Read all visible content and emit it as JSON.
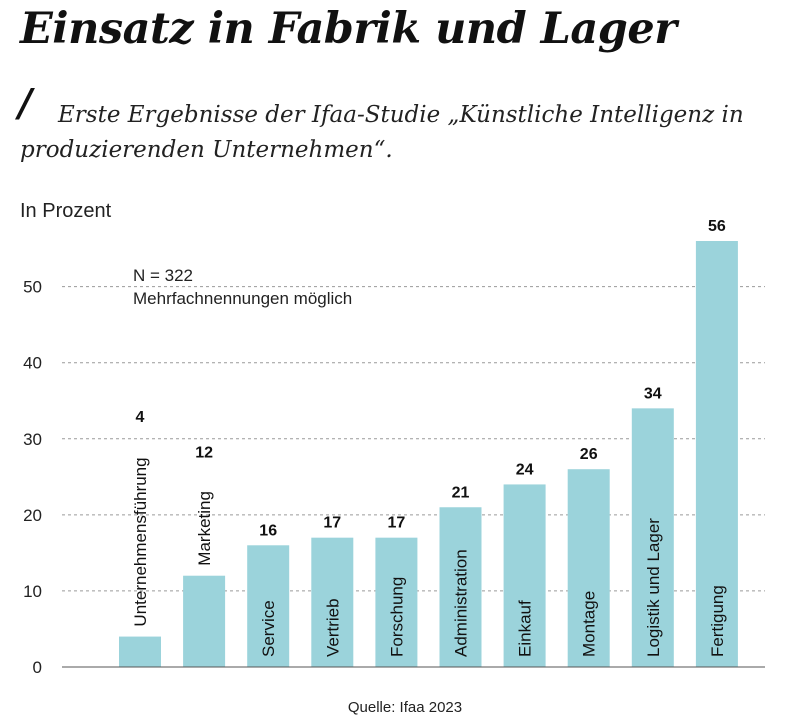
{
  "chart_data": {
    "type": "bar",
    "title": "Einsatz in Fabrik und Lager",
    "subtitle": "Erste Ergebnisse der Ifaa-Studie „Künstliche Intelligenz in produzierenden Unternehmen“.",
    "ylabel": "In Prozent",
    "xlabel": "",
    "ylim": [
      0,
      56
    ],
    "yticks": [
      0,
      10,
      20,
      30,
      40,
      50
    ],
    "grid": true,
    "bar_color": "#9bd3db",
    "annotation": [
      "N = 322",
      "Mehrfachnennungen möglich"
    ],
    "categories": [
      "Unternehmensführung",
      "Marketing",
      "Service",
      "Vertrieb",
      "Forschung",
      "Administration",
      "Einkauf",
      "Montage",
      "Logistik und Lager",
      "Fertigung"
    ],
    "values": [
      4,
      12,
      16,
      17,
      17,
      21,
      24,
      26,
      34,
      56
    ],
    "source": "Quelle: Ifaa 2023"
  }
}
